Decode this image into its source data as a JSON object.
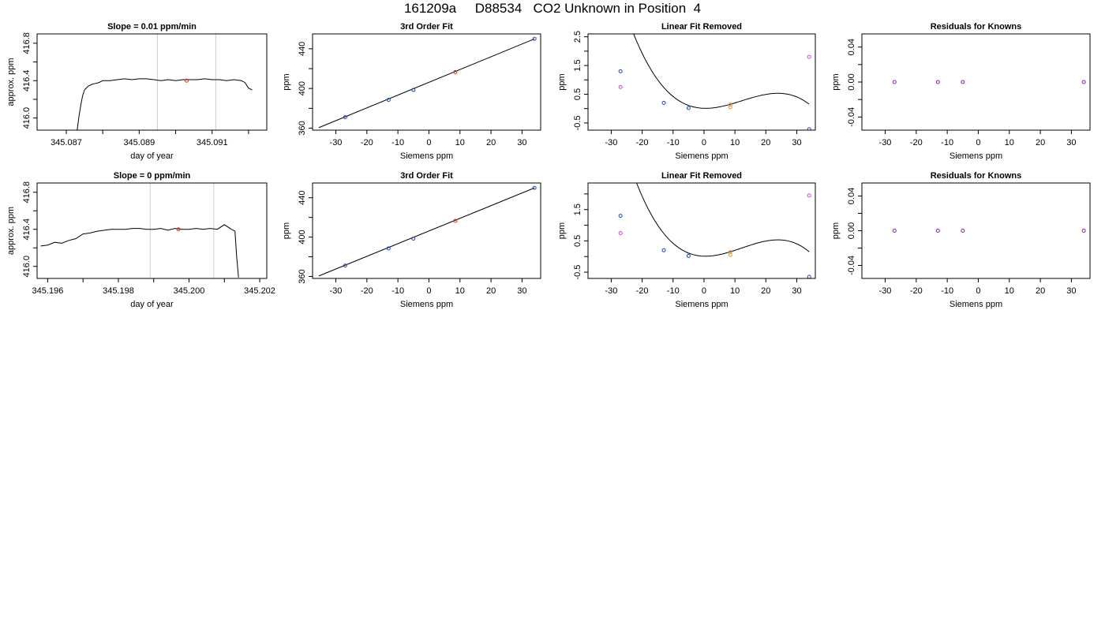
{
  "page": {
    "title": "161209a     D88534   CO2 Unknown in Position  4"
  },
  "colors": {
    "trace": "#000000",
    "knowns": "#1f3fd6",
    "unknown": "#e0301e",
    "unknown_marker": "#e040e0",
    "purple": "#7a1fd0",
    "orange": "#f08a24",
    "window_lines": "#cccccc"
  },
  "chart_data": [
    {
      "type": "line",
      "title": "Slope =  0.01  ppm/min",
      "xlabel": "day of year",
      "ylabel": "approx. ppm",
      "xlim": [
        345.0862,
        345.0925
      ],
      "ylim": [
        415.87,
        416.9
      ],
      "xticks": [
        345.087,
        345.088,
        345.089,
        345.09,
        345.091,
        345.092
      ],
      "xtick_labels": [
        "345.087",
        "",
        "345.089",
        "",
        "345.091",
        ""
      ],
      "yticks": [
        416.0,
        416.2,
        416.4,
        416.6,
        416.8
      ],
      "ytick_labels": [
        "416.0",
        "",
        "416.4",
        "",
        "416.8"
      ],
      "vlines": [
        345.0895,
        345.0911
      ],
      "trace": {
        "x": [
          345.0873,
          345.08735,
          345.0874,
          345.08745,
          345.0875,
          345.0876,
          345.0877,
          345.0878,
          345.0879,
          345.088,
          345.0882,
          345.0884,
          345.0886,
          345.0888,
          345.089,
          345.0892,
          345.0894,
          345.0896,
          345.0898,
          345.09,
          345.0902,
          345.0904,
          345.0906,
          345.0908,
          345.091,
          345.0912,
          345.0914,
          345.0916,
          345.0918,
          345.0919,
          345.092,
          345.0921
        ],
        "y": [
          415.87,
          416.02,
          416.14,
          416.24,
          416.3,
          416.34,
          416.36,
          416.37,
          416.38,
          416.4,
          416.4,
          416.41,
          416.42,
          416.41,
          416.42,
          416.42,
          416.41,
          416.4,
          416.41,
          416.4,
          416.41,
          416.41,
          416.41,
          416.42,
          416.41,
          416.41,
          416.4,
          416.41,
          416.4,
          416.38,
          416.32,
          416.3
        ]
      },
      "points": [
        {
          "x": 345.0903,
          "y": 416.4,
          "color": "#e0301e"
        }
      ]
    },
    {
      "type": "scatter",
      "title": "3rd Order Fit",
      "xlabel": "Siemens ppm",
      "ylabel": "ppm",
      "xlim": [
        -37.5,
        36
      ],
      "ylim": [
        358,
        455
      ],
      "xticks": [
        -30,
        -20,
        -10,
        0,
        10,
        20,
        30
      ],
      "yticks": [
        360,
        380,
        400,
        420,
        440
      ],
      "ytick_labels": [
        "360",
        "",
        "400",
        "",
        "440"
      ],
      "fit_line": {
        "x": [
          -35.5,
          34
        ],
        "y": [
          360.5,
          450
        ]
      },
      "points": [
        {
          "x": -27,
          "y": 371,
          "color": "#1f3fd6"
        },
        {
          "x": -13,
          "y": 388.5,
          "color": "#1f3fd6"
        },
        {
          "x": -5,
          "y": 398.5,
          "color": "#1f3fd6"
        },
        {
          "x": 8.5,
          "y": 416.5,
          "color": "#e0301e"
        },
        {
          "x": 34,
          "y": 450,
          "color": "#1f3fd6"
        }
      ]
    },
    {
      "type": "scatter",
      "title": "Linear Fit Removed",
      "xlabel": "Siemens ppm",
      "ylabel": "ppm",
      "xlim": [
        -37.5,
        36
      ],
      "ylim": [
        -0.75,
        2.6
      ],
      "xticks": [
        -30,
        -20,
        -10,
        0,
        10,
        20,
        30
      ],
      "yticks": [
        -0.5,
        0,
        0.5,
        1,
        1.5,
        2,
        2.5
      ],
      "ytick_labels": [
        "-0.5",
        "",
        "0.5",
        "",
        "1.5",
        "",
        "2.5"
      ],
      "curve": {
        "roots": [
          -4,
          8
        ],
        "cube": 0.000333,
        "shift": 9.5
      },
      "points": [
        {
          "x": -27,
          "y": 1.3,
          "color": "#1f3fd6"
        },
        {
          "x": -27,
          "y": 0.75,
          "color": "#e040e0"
        },
        {
          "x": -13,
          "y": 0.2,
          "color": "#1f3fd6"
        },
        {
          "x": -5,
          "y": 0.02,
          "color": "#1f3fd6"
        },
        {
          "x": 8.5,
          "y": 0.05,
          "color": "#f08a24"
        },
        {
          "x": 8.5,
          "y": 0.14,
          "color": "#f08a24"
        },
        {
          "x": 34,
          "y": 1.8,
          "color": "#e040e0"
        },
        {
          "x": 34,
          "y": -0.72,
          "color": "#1f3fd6"
        }
      ]
    },
    {
      "type": "scatter",
      "title": "Residuals for Knowns",
      "xlabel": "Siemens ppm",
      "ylabel": "ppm",
      "xlim": [
        -37.5,
        36
      ],
      "ylim": [
        -0.055,
        0.055
      ],
      "xticks": [
        -30,
        -20,
        -10,
        0,
        10,
        20,
        30
      ],
      "yticks": [
        -0.04,
        -0.02,
        0,
        0.02,
        0.04
      ],
      "ytick_labels": [
        "-0.04",
        "",
        "0.00",
        "",
        "0.04"
      ],
      "points": [
        {
          "x": -27,
          "y": 0,
          "color": "#7a1fd0"
        },
        {
          "x": -13,
          "y": 0,
          "color": "#7a1fd0"
        },
        {
          "x": -5,
          "y": 0,
          "color": "#7a1fd0"
        },
        {
          "x": 34,
          "y": 0,
          "color": "#7a1fd0"
        }
      ]
    },
    {
      "type": "line",
      "title": "Slope =  0  ppm/min",
      "xlabel": "day of year",
      "ylabel": "approx. ppm",
      "xlim": [
        345.1957,
        345.2022
      ],
      "ylim": [
        415.87,
        416.9
      ],
      "xticks": [
        345.196,
        345.197,
        345.198,
        345.199,
        345.2,
        345.201,
        345.202
      ],
      "xtick_labels": [
        "345.196",
        "",
        "345.198",
        "",
        "345.200",
        "",
        "345.202"
      ],
      "yticks": [
        416.0,
        416.2,
        416.4,
        416.6,
        416.8
      ],
      "ytick_labels": [
        "416.0",
        "",
        "416.4",
        "",
        "416.8"
      ],
      "vlines": [
        345.1989,
        345.2007
      ],
      "trace": {
        "x": [
          345.1958,
          345.196,
          345.1962,
          345.1964,
          345.1966,
          345.1968,
          345.197,
          345.1972,
          345.1974,
          345.1976,
          345.1978,
          345.198,
          345.1982,
          345.1984,
          345.1986,
          345.1988,
          345.199,
          345.1992,
          345.1994,
          345.1996,
          345.1998,
          345.2,
          345.2002,
          345.2004,
          345.2006,
          345.2008,
          345.201,
          345.2012,
          345.2013,
          345.20135,
          345.2014
        ],
        "y": [
          416.22,
          416.23,
          416.26,
          416.25,
          416.28,
          416.3,
          416.35,
          416.36,
          416.38,
          416.39,
          416.4,
          416.4,
          416.4,
          416.41,
          416.41,
          416.4,
          416.4,
          416.41,
          416.39,
          416.41,
          416.4,
          416.4,
          416.41,
          416.4,
          416.41,
          416.4,
          416.45,
          416.4,
          416.38,
          416.1,
          415.88
        ]
      },
      "points": [
        {
          "x": 345.1997,
          "y": 416.4,
          "color": "#e0301e"
        }
      ]
    },
    {
      "type": "scatter",
      "title": "3rd Order Fit",
      "xlabel": "Siemens ppm",
      "ylabel": "ppm",
      "xlim": [
        -37.5,
        36
      ],
      "ylim": [
        358,
        455
      ],
      "xticks": [
        -30,
        -20,
        -10,
        0,
        10,
        20,
        30
      ],
      "yticks": [
        360,
        380,
        400,
        420,
        440
      ],
      "ytick_labels": [
        "360",
        "",
        "400",
        "",
        "440"
      ],
      "fit_line": {
        "x": [
          -35.5,
          34
        ],
        "y": [
          360.5,
          450
        ]
      },
      "points": [
        {
          "x": -27,
          "y": 371,
          "color": "#1f3fd6"
        },
        {
          "x": -13,
          "y": 388.5,
          "color": "#1f3fd6"
        },
        {
          "x": -5,
          "y": 398.5,
          "color": "#1f3fd6"
        },
        {
          "x": 8.5,
          "y": 416.5,
          "color": "#e0301e"
        },
        {
          "x": 34,
          "y": 450,
          "color": "#1f3fd6"
        }
      ]
    },
    {
      "type": "scatter",
      "title": "Linear Fit Removed",
      "xlabel": "Siemens ppm",
      "ylabel": "ppm",
      "xlim": [
        -37.5,
        36
      ],
      "ylim": [
        -0.7,
        2.35
      ],
      "xticks": [
        -30,
        -20,
        -10,
        0,
        10,
        20,
        30
      ],
      "yticks": [
        -0.5,
        0,
        0.5,
        1,
        1.5,
        2
      ],
      "ytick_labels": [
        "-0.5",
        "",
        "0.5",
        "",
        "1.5",
        ""
      ],
      "curve": {
        "roots": [
          -4,
          8
        ],
        "cube": 0.000333,
        "shift": 9.5
      },
      "points": [
        {
          "x": -27,
          "y": 1.3,
          "color": "#1f3fd6"
        },
        {
          "x": -27,
          "y": 0.75,
          "color": "#e040e0"
        },
        {
          "x": -13,
          "y": 0.2,
          "color": "#1f3fd6"
        },
        {
          "x": -5,
          "y": 0.02,
          "color": "#1f3fd6"
        },
        {
          "x": 8.5,
          "y": 0.05,
          "color": "#f08a24"
        },
        {
          "x": 8.5,
          "y": 0.14,
          "color": "#f08a24"
        },
        {
          "x": 34,
          "y": 1.95,
          "color": "#e040e0"
        },
        {
          "x": 34,
          "y": -0.65,
          "color": "#1f3fd6"
        }
      ]
    },
    {
      "type": "scatter",
      "title": "Residuals for Knowns",
      "xlabel": "Siemens ppm",
      "ylabel": "ppm",
      "xlim": [
        -37.5,
        36
      ],
      "ylim": [
        -0.055,
        0.055
      ],
      "xticks": [
        -30,
        -20,
        -10,
        0,
        10,
        20,
        30
      ],
      "yticks": [
        -0.04,
        -0.02,
        0,
        0.02,
        0.04
      ],
      "ytick_labels": [
        "-0.04",
        "",
        "0.00",
        "",
        "0.04"
      ],
      "points": [
        {
          "x": -27,
          "y": 0,
          "color": "#7a1fd0"
        },
        {
          "x": -13,
          "y": 0,
          "color": "#7a1fd0"
        },
        {
          "x": -5,
          "y": 0,
          "color": "#7a1fd0"
        },
        {
          "x": 34,
          "y": 0,
          "color": "#7a1fd0"
        }
      ]
    }
  ]
}
